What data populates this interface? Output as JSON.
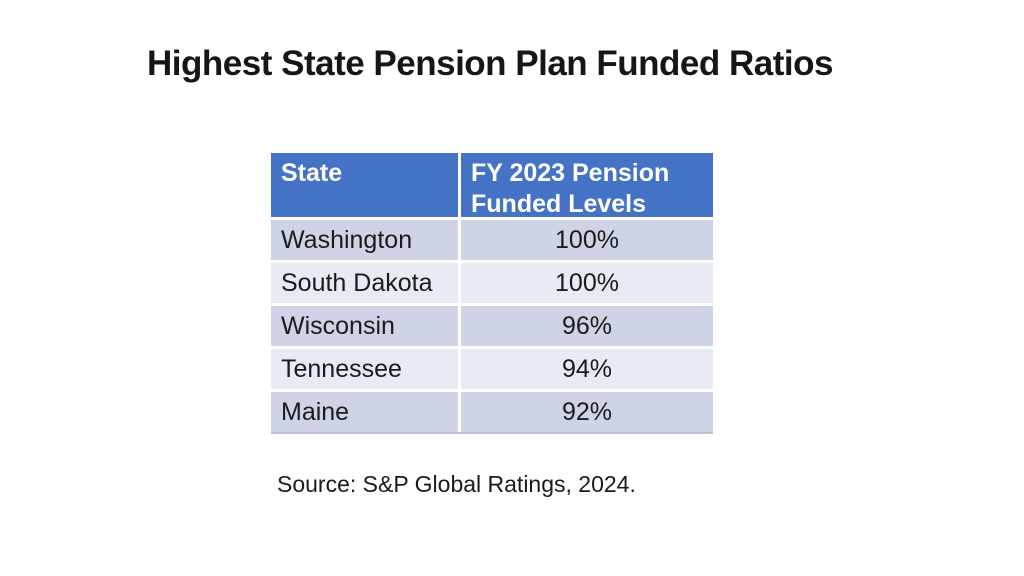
{
  "title": "Highest State Pension Plan Funded Ratios",
  "table": {
    "headers": [
      "State",
      "FY 2023 Pension Funded Levels"
    ],
    "rows": [
      {
        "state": "Washington",
        "value": "100%"
      },
      {
        "state": "South Dakota",
        "value": "100%"
      },
      {
        "state": "Wisconsin",
        "value": "96%"
      },
      {
        "state": "Tennessee",
        "value": "94%"
      },
      {
        "state": "Maine",
        "value": "92%"
      }
    ]
  },
  "source": "Source: S&P Global Ratings, 2024.",
  "colors": {
    "header_bg": "#4473C5",
    "header_text": "#FFFFFF",
    "row_band_dark": "#CED3E6",
    "row_band_light": "#E9EBF4",
    "grid_gap": "#FFFFFF",
    "body_text": "#1B1B1B",
    "title_text": "#161616"
  }
}
